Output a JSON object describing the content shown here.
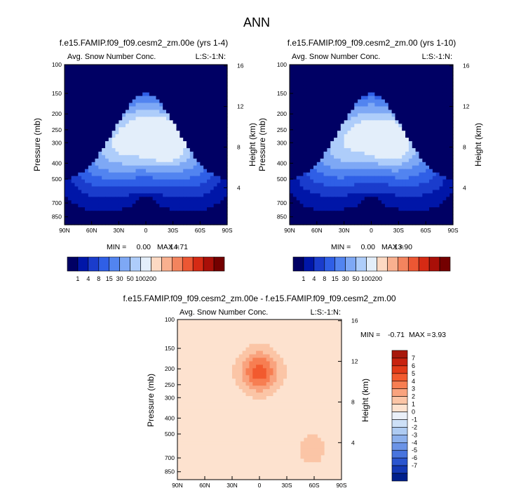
{
  "page_title": "ANN",
  "chart_data": [
    {
      "type": "heatmap",
      "title": "f.e15.FAMIP.f09_f09.cesm2_zm.00e (yrs 1-4)",
      "subtitle": "Avg. Snow Number Conc.",
      "corner_label": "L:S:-1:N:",
      "xlabel": "",
      "ylabel": "Pressure (mb)",
      "ylabel_right": "Height (km)",
      "x_ticks": [
        "90N",
        "60N",
        "30N",
        "0",
        "30S",
        "60S",
        "90S"
      ],
      "y_ticks": [
        "100",
        "150",
        "200",
        "250",
        "300",
        "400",
        "500",
        "700",
        "850"
      ],
      "y_right_ticks": [
        "16",
        "12",
        "8",
        "4"
      ],
      "stats": {
        "min_label": "MIN =",
        "min": "0.00",
        "max_label": "MAX =",
        "max": "14.71"
      },
      "colorbar_labels": [
        "1",
        "4",
        "8",
        "15",
        "30",
        "50",
        "100",
        "200"
      ],
      "colors": [
        "#000064",
        "#0016a8",
        "#1a3ccc",
        "#2f5fe6",
        "#5284f0",
        "#7ea8f5",
        "#aecdfa",
        "#e3eefa",
        "#fdd9c3",
        "#f9b08f",
        "#f3845e",
        "#ec5733",
        "#d52a14",
        "#a90f08",
        "#740000"
      ],
      "peak": 0.82
    },
    {
      "type": "heatmap",
      "title": "f.e15.FAMIP.f09_f09.cesm2_zm.00 (yrs 1-10)",
      "subtitle": "Avg. Snow Number Conc.",
      "corner_label": "L:S:-1:N:",
      "xlabel": "",
      "ylabel": "Pressure (mb)",
      "ylabel_right": "Height (km)",
      "x_ticks": [
        "90N",
        "60N",
        "30N",
        "0",
        "30S",
        "60S",
        "90S"
      ],
      "y_ticks": [
        "100",
        "150",
        "200",
        "250",
        "300",
        "400",
        "500",
        "700",
        "850"
      ],
      "y_right_ticks": [
        "16",
        "12",
        "8",
        "4"
      ],
      "stats": {
        "min_label": "MIN =",
        "min": "0.00",
        "max_label": "MAX =",
        "max": "13.90"
      },
      "colorbar_labels": [
        "1",
        "4",
        "8",
        "15",
        "30",
        "50",
        "100",
        "200"
      ],
      "colors": [
        "#000064",
        "#0016a8",
        "#1a3ccc",
        "#2f5fe6",
        "#5284f0",
        "#7ea8f5",
        "#aecdfa",
        "#e3eefa",
        "#fdd9c3",
        "#f9b08f",
        "#f3845e",
        "#ec5733",
        "#d52a14",
        "#a90f08",
        "#740000"
      ],
      "peak": 0.78
    },
    {
      "type": "heatmap",
      "title": "f.e15.FAMIP.f09_f09.cesm2_zm.00e - f.e15.FAMIP.f09_f09.cesm2_zm.00",
      "subtitle": "Avg. Snow Number Conc.",
      "corner_label": "L:S:-1:N:",
      "xlabel": "",
      "ylabel": "Pressure (mb)",
      "ylabel_right": "Height (km)",
      "x_ticks": [
        "90N",
        "60N",
        "30N",
        "0",
        "30S",
        "60S",
        "90S"
      ],
      "y_ticks": [
        "100",
        "150",
        "200",
        "250",
        "300",
        "400",
        "500",
        "700",
        "850"
      ],
      "y_right_ticks": [
        "16",
        "12",
        "8",
        "4"
      ],
      "stats": {
        "min_label": "MIN =",
        "min": "-0.71",
        "max_label": "MAX =",
        "max": "3.93"
      },
      "colorbar_labels": [
        "7",
        "6",
        "5",
        "4",
        "3",
        "2",
        "1",
        "0",
        "-1",
        "-2",
        "-3",
        "-4",
        "-5",
        "-6",
        "-7"
      ],
      "colors": [
        "#a8180c",
        "#c8220f",
        "#e23a18",
        "#f25a2e",
        "#f77e52",
        "#f9a37e",
        "#fbc5a6",
        "#fde2cf",
        "#eaf0f8",
        "#cde0f7",
        "#aecbf2",
        "#8cb0ec",
        "#6b93e6",
        "#4874de",
        "#2a55cf",
        "#1338b5",
        "#001f8c"
      ]
    }
  ]
}
